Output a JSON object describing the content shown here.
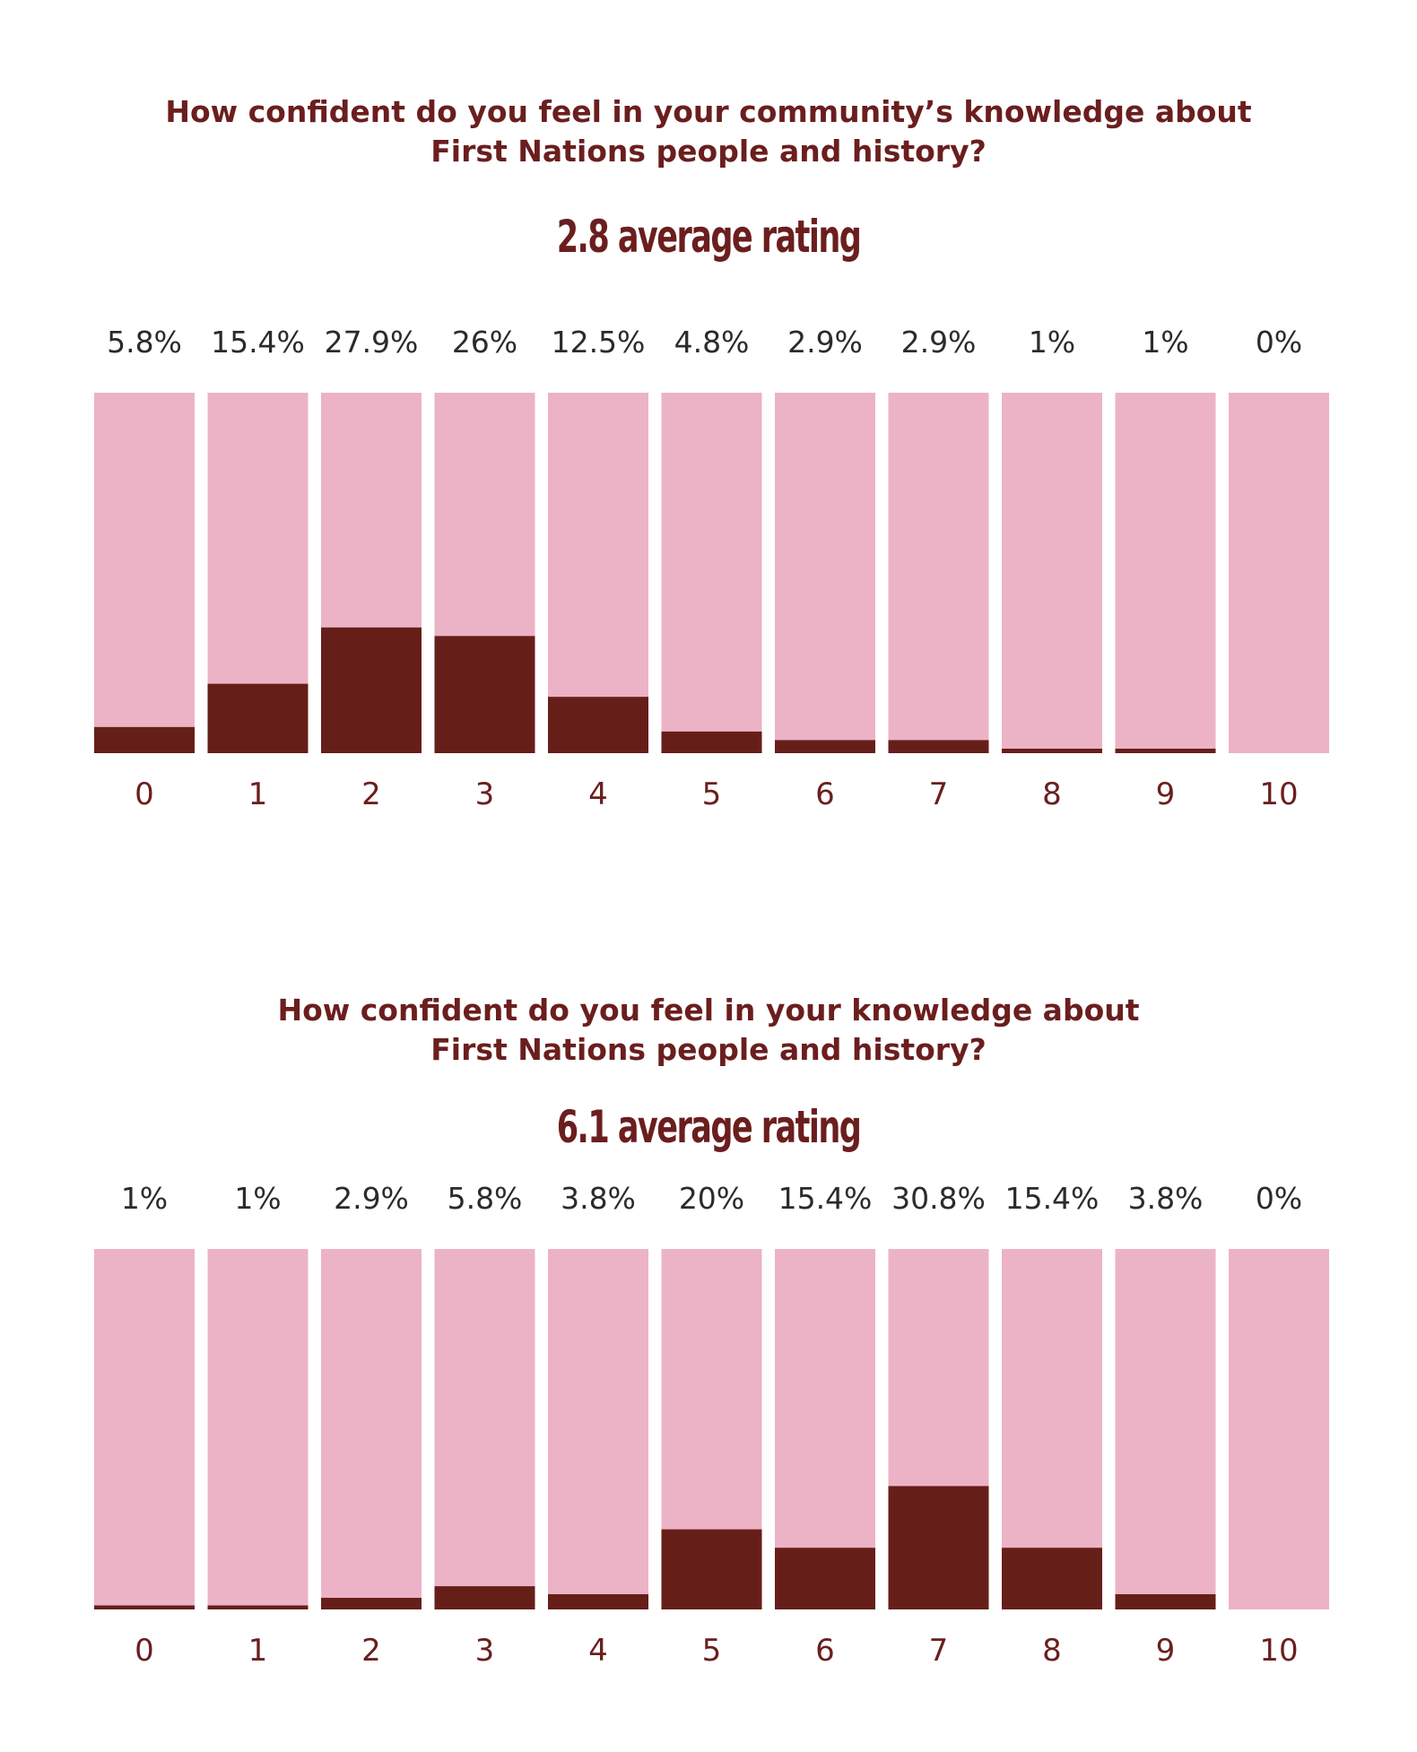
{
  "colors": {
    "track": "#ecb3c6",
    "fill": "#661e19",
    "title": "#6b1e1e",
    "pct_text": "#2b2b2b"
  },
  "chart_data": [
    {
      "type": "bar",
      "title": "How confident do you feel in your community’s knowledge about\nFirst Nations people and history?",
      "subtitle": "2.8 average rating",
      "categories": [
        "0",
        "1",
        "2",
        "3",
        "4",
        "5",
        "6",
        "7",
        "8",
        "9",
        "10"
      ],
      "values": [
        5.8,
        15.4,
        27.9,
        26,
        12.5,
        4.8,
        2.9,
        2.9,
        1,
        1,
        0
      ],
      "value_labels": [
        "5.8%",
        "15.4%",
        "27.9%",
        "26%",
        "12.5%",
        "4.8%",
        "2.9%",
        "2.9%",
        "1%",
        "1%",
        "0%"
      ],
      "ylim": [
        0,
        80
      ]
    },
    {
      "type": "bar",
      "title": "How confident do you feel in your knowledge about\nFirst Nations people and history?",
      "subtitle": "6.1 average rating",
      "categories": [
        "0",
        "1",
        "2",
        "3",
        "4",
        "5",
        "6",
        "7",
        "8",
        "9",
        "10"
      ],
      "values": [
        1,
        1,
        2.9,
        5.8,
        3.8,
        20,
        15.4,
        30.8,
        15.4,
        3.8,
        0
      ],
      "value_labels": [
        "1%",
        "1%",
        "2.9%",
        "5.8%",
        "3.8%",
        "20%",
        "15.4%",
        "30.8%",
        "15.4%",
        "3.8%",
        "0%"
      ],
      "ylim": [
        0,
        90
      ]
    }
  ]
}
